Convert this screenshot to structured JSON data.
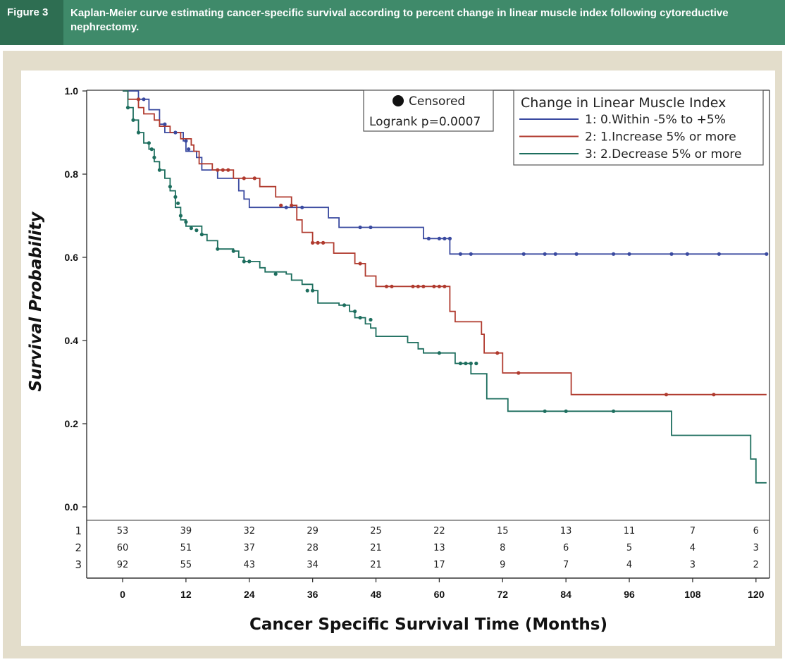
{
  "figure": {
    "label": "Figure 3",
    "caption": "Kaplan-Meier curve estimating cancer-specific survival according to percent change in linear muscle index following cytoreductive nephrectomy."
  },
  "chart_data": {
    "type": "line",
    "step": true,
    "xlabel": "Cancer Specific Survival Time (Months)",
    "ylabel": "Survival Probability",
    "xlim": [
      0,
      122
    ],
    "ylim": [
      0,
      1
    ],
    "x_ticks": [
      0,
      12,
      24,
      36,
      48,
      60,
      72,
      84,
      96,
      108,
      120
    ],
    "y_ticks": [
      "0.0",
      "0.2",
      "0.4",
      "0.6",
      "0.8",
      "1.0"
    ],
    "grid": false,
    "censor_legend": "Censored",
    "logrank": "Logrank p=0.0007",
    "legend_title": "Change in Linear Muscle Index",
    "legend_position": "top-right",
    "series": [
      {
        "name": "1: 0.Within -5% to +5%",
        "color": "#3a4aa0",
        "steps": [
          [
            0,
            1.0
          ],
          [
            3,
            0.98
          ],
          [
            5,
            0.955
          ],
          [
            7,
            0.92
          ],
          [
            8,
            0.9
          ],
          [
            11.5,
            0.88
          ],
          [
            12,
            0.855
          ],
          [
            14,
            0.84
          ],
          [
            15,
            0.81
          ],
          [
            18,
            0.79
          ],
          [
            22,
            0.76
          ],
          [
            23,
            0.74
          ],
          [
            24,
            0.72
          ],
          [
            30,
            0.72
          ],
          [
            33,
            0.72
          ],
          [
            39,
            0.695
          ],
          [
            41,
            0.672
          ],
          [
            57,
            0.645
          ],
          [
            62,
            0.608
          ],
          [
            122,
            0.608
          ]
        ],
        "censored": [
          [
            3,
            0.98
          ],
          [
            4,
            0.98
          ],
          [
            8,
            0.92
          ],
          [
            10,
            0.9
          ],
          [
            12,
            0.88
          ],
          [
            12.5,
            0.86
          ],
          [
            31,
            0.72
          ],
          [
            34,
            0.72
          ],
          [
            45,
            0.672
          ],
          [
            47,
            0.672
          ],
          [
            58,
            0.645
          ],
          [
            60,
            0.645
          ],
          [
            61,
            0.645
          ],
          [
            62,
            0.645
          ],
          [
            64,
            0.608
          ],
          [
            66,
            0.608
          ],
          [
            76,
            0.608
          ],
          [
            80,
            0.608
          ],
          [
            82,
            0.608
          ],
          [
            86,
            0.608
          ],
          [
            93,
            0.608
          ],
          [
            96,
            0.608
          ],
          [
            104,
            0.608
          ],
          [
            107,
            0.608
          ],
          [
            113,
            0.608
          ],
          [
            122,
            0.608
          ]
        ],
        "at_risk": [
          "53",
          "39",
          "32",
          "29",
          "25",
          "22",
          "15",
          "13",
          "11",
          "7",
          "6"
        ]
      },
      {
        "name": "2: 1.Increase 5% or more",
        "color": "#b03a2e",
        "steps": [
          [
            0,
            1.0
          ],
          [
            1,
            0.98
          ],
          [
            3,
            0.96
          ],
          [
            4,
            0.945
          ],
          [
            6,
            0.93
          ],
          [
            7,
            0.915
          ],
          [
            9,
            0.9
          ],
          [
            11,
            0.885
          ],
          [
            13,
            0.87
          ],
          [
            13.5,
            0.855
          ],
          [
            14.5,
            0.825
          ],
          [
            17,
            0.81
          ],
          [
            21,
            0.79
          ],
          [
            26,
            0.77
          ],
          [
            29,
            0.745
          ],
          [
            32,
            0.725
          ],
          [
            33,
            0.69
          ],
          [
            34,
            0.66
          ],
          [
            36,
            0.635
          ],
          [
            40,
            0.61
          ],
          [
            44,
            0.585
          ],
          [
            46,
            0.555
          ],
          [
            48,
            0.53
          ],
          [
            62,
            0.47
          ],
          [
            63,
            0.445
          ],
          [
            68,
            0.415
          ],
          [
            68.5,
            0.37
          ],
          [
            72,
            0.322
          ],
          [
            85,
            0.27
          ],
          [
            122,
            0.27
          ]
        ],
        "censored": [
          [
            3,
            0.98
          ],
          [
            18,
            0.81
          ],
          [
            19,
            0.81
          ],
          [
            20,
            0.81
          ],
          [
            23,
            0.79
          ],
          [
            25,
            0.79
          ],
          [
            30,
            0.725
          ],
          [
            32,
            0.725
          ],
          [
            36,
            0.635
          ],
          [
            37,
            0.635
          ],
          [
            38,
            0.635
          ],
          [
            45,
            0.585
          ],
          [
            50,
            0.53
          ],
          [
            51,
            0.53
          ],
          [
            55,
            0.53
          ],
          [
            56,
            0.53
          ],
          [
            57,
            0.53
          ],
          [
            59,
            0.53
          ],
          [
            60,
            0.53
          ],
          [
            61,
            0.53
          ],
          [
            71,
            0.37
          ],
          [
            75,
            0.322
          ],
          [
            103,
            0.27
          ],
          [
            112,
            0.27
          ]
        ],
        "at_risk": [
          "60",
          "51",
          "37",
          "28",
          "21",
          "13",
          "8",
          "6",
          "5",
          "4",
          "3"
        ]
      },
      {
        "name": "3: 2.Decrease 5% or more",
        "color": "#1d6e5e",
        "steps": [
          [
            0,
            1.0
          ],
          [
            1,
            0.96
          ],
          [
            2,
            0.93
          ],
          [
            3,
            0.9
          ],
          [
            4,
            0.875
          ],
          [
            5,
            0.86
          ],
          [
            6,
            0.83
          ],
          [
            7,
            0.81
          ],
          [
            8,
            0.79
          ],
          [
            9,
            0.76
          ],
          [
            10,
            0.72
          ],
          [
            11,
            0.69
          ],
          [
            12,
            0.675
          ],
          [
            15,
            0.655
          ],
          [
            16,
            0.64
          ],
          [
            18,
            0.62
          ],
          [
            21,
            0.615
          ],
          [
            22,
            0.6
          ],
          [
            23,
            0.59
          ],
          [
            26,
            0.575
          ],
          [
            27,
            0.565
          ],
          [
            31,
            0.56
          ],
          [
            32,
            0.545
          ],
          [
            34,
            0.535
          ],
          [
            36,
            0.52
          ],
          [
            37,
            0.49
          ],
          [
            41,
            0.485
          ],
          [
            43,
            0.47
          ],
          [
            44,
            0.455
          ],
          [
            46,
            0.44
          ],
          [
            47,
            0.43
          ],
          [
            48,
            0.41
          ],
          [
            54,
            0.395
          ],
          [
            56,
            0.38
          ],
          [
            57,
            0.37
          ],
          [
            63,
            0.345
          ],
          [
            66,
            0.32
          ],
          [
            69,
            0.26
          ],
          [
            73,
            0.23
          ],
          [
            104,
            0.172
          ],
          [
            119,
            0.115
          ],
          [
            120,
            0.058
          ],
          [
            122,
            0.058
          ]
        ],
        "censored": [
          [
            1,
            0.96
          ],
          [
            2,
            0.93
          ],
          [
            3,
            0.9
          ],
          [
            5,
            0.875
          ],
          [
            5.5,
            0.86
          ],
          [
            6,
            0.84
          ],
          [
            7,
            0.81
          ],
          [
            9,
            0.77
          ],
          [
            10,
            0.745
          ],
          [
            10.5,
            0.73
          ],
          [
            11,
            0.7
          ],
          [
            12,
            0.685
          ],
          [
            13,
            0.67
          ],
          [
            14,
            0.665
          ],
          [
            15,
            0.655
          ],
          [
            18,
            0.62
          ],
          [
            21,
            0.615
          ],
          [
            23,
            0.59
          ],
          [
            24,
            0.59
          ],
          [
            29,
            0.56
          ],
          [
            35,
            0.52
          ],
          [
            36,
            0.52
          ],
          [
            42,
            0.485
          ],
          [
            44,
            0.47
          ],
          [
            45,
            0.455
          ],
          [
            47,
            0.45
          ],
          [
            60,
            0.37
          ],
          [
            64,
            0.345
          ],
          [
            65,
            0.345
          ],
          [
            66,
            0.345
          ],
          [
            67,
            0.345
          ],
          [
            80,
            0.23
          ],
          [
            84,
            0.23
          ],
          [
            93,
            0.23
          ]
        ],
        "at_risk": [
          "92",
          "55",
          "43",
          "34",
          "21",
          "17",
          "9",
          "7",
          "4",
          "3",
          "2"
        ]
      }
    ]
  }
}
